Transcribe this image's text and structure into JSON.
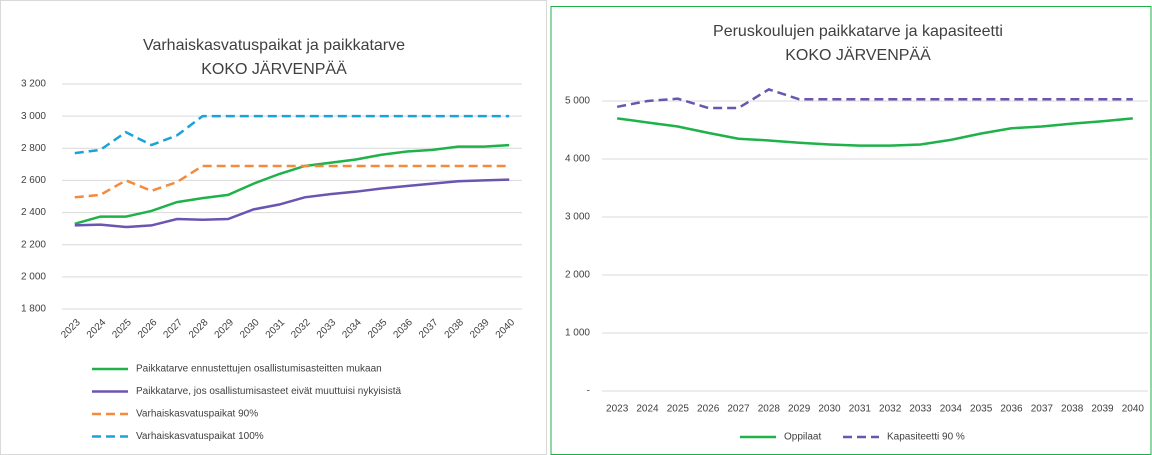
{
  "chart_data": [
    {
      "type": "line",
      "title": "Varhaiskasvatuspaikat ja paikkatarve",
      "subtitle": "KOKO JÄRVENPÄÄ",
      "categories": [
        "2023",
        "2024",
        "2025",
        "2026",
        "2027",
        "2028",
        "2029",
        "2030",
        "2031",
        "2032",
        "2033",
        "2034",
        "2035",
        "2036",
        "2037",
        "2038",
        "2039",
        "2040"
      ],
      "series": [
        {
          "name": "Paikkatarve ennustettujen osallistumisasteitten mukaan",
          "color": "#1fb14a",
          "dash": false,
          "values": [
            2330,
            2375,
            2375,
            2410,
            2465,
            2490,
            2510,
            2580,
            2640,
            2690,
            2710,
            2730,
            2760,
            2780,
            2790,
            2810,
            2810,
            2820
          ]
        },
        {
          "name": "Paikkatarve, jos osallistumisasteet eivät muuttuisi nykyisistä",
          "color": "#6a55b0",
          "dash": false,
          "values": [
            2320,
            2325,
            2310,
            2320,
            2360,
            2355,
            2360,
            2420,
            2450,
            2495,
            2515,
            2530,
            2550,
            2565,
            2580,
            2595,
            2600,
            2605
          ]
        },
        {
          "name": "Varhaiskasvatuspaikat 90%",
          "color": "#f58a3c",
          "dash": true,
          "values": [
            2495,
            2510,
            2600,
            2535,
            2590,
            2690,
            2690,
            2690,
            2690,
            2690,
            2690,
            2690,
            2690,
            2690,
            2690,
            2690,
            2690,
            2690
          ]
        },
        {
          "name": "Varhaiskasvatuspaikat 100%",
          "color": "#1aa3d9",
          "dash": true,
          "values": [
            2770,
            2790,
            2900,
            2820,
            2880,
            3000,
            3000,
            3000,
            3000,
            3000,
            3000,
            3000,
            3000,
            3000,
            3000,
            3000,
            3000,
            3000
          ]
        }
      ],
      "ylim": [
        1800,
        3200
      ],
      "yticks": [
        {
          "value": 1800,
          "label": "1 800"
        },
        {
          "value": 2000,
          "label": "2 000"
        },
        {
          "value": 2200,
          "label": "2 200"
        },
        {
          "value": 2400,
          "label": "2 400"
        },
        {
          "value": 2600,
          "label": "2 600"
        },
        {
          "value": 2800,
          "label": "2 800"
        },
        {
          "value": 3000,
          "label": "3 000"
        },
        {
          "value": 3200,
          "label": "3 200"
        }
      ],
      "grid": true,
      "legend": "bottom"
    },
    {
      "type": "line",
      "title": "Peruskoulujen paikkatarve ja kapasiteetti",
      "subtitle": "KOKO JÄRVENPÄÄ",
      "categories": [
        "2023",
        "2024",
        "2025",
        "2026",
        "2027",
        "2028",
        "2029",
        "2030",
        "2031",
        "2032",
        "2033",
        "2034",
        "2035",
        "2036",
        "2037",
        "2038",
        "2039",
        "2040"
      ],
      "series": [
        {
          "name": "Oppilaat",
          "color": "#1fb14a",
          "dash": false,
          "values": [
            4700,
            4630,
            4560,
            4450,
            4350,
            4320,
            4280,
            4250,
            4230,
            4230,
            4250,
            4330,
            4440,
            4530,
            4560,
            4610,
            4650,
            4700
          ]
        },
        {
          "name": "Kapasiteetti 90 %",
          "color": "#6a55b0",
          "dash": true,
          "values": [
            4900,
            5000,
            5040,
            4880,
            4880,
            5200,
            5030,
            5030,
            5030,
            5030,
            5030,
            5030,
            5030,
            5030,
            5030,
            5030,
            5030,
            5030
          ]
        }
      ],
      "ylim": [
        0,
        5500
      ],
      "yticks": [
        {
          "value": 0,
          "label": "-"
        },
        {
          "value": 1000,
          "label": "1 000"
        },
        {
          "value": 2000,
          "label": "2 000"
        },
        {
          "value": 3000,
          "label": "3 000"
        },
        {
          "value": 4000,
          "label": "4 000"
        },
        {
          "value": 5000,
          "label": "5 000"
        }
      ],
      "grid": true,
      "legend": "bottom"
    }
  ]
}
